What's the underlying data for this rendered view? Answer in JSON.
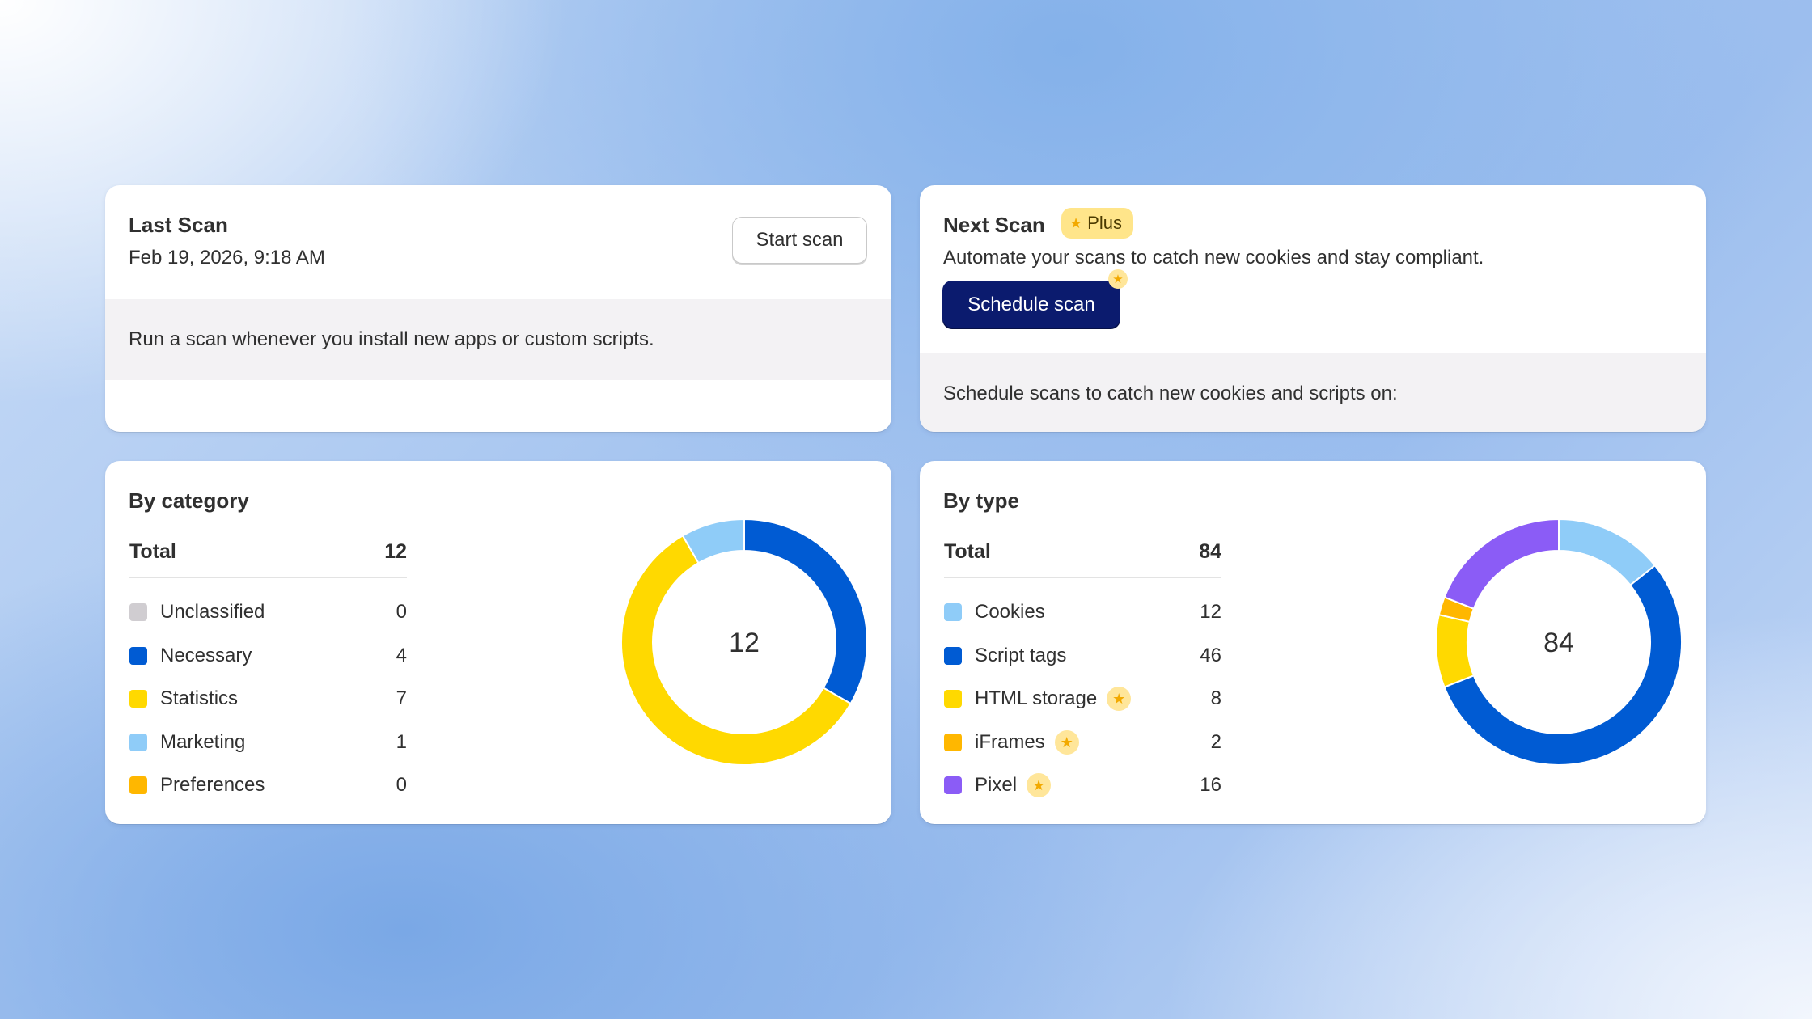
{
  "last_scan": {
    "title": "Last Scan",
    "date": "Feb 19, 2026, 9:18 AM",
    "start_button": "Start scan",
    "info": "Run a scan whenever you install new apps or custom scripts."
  },
  "next_scan": {
    "title": "Next Scan",
    "plus_badge": "Plus",
    "description": "Automate your scans to catch new cookies and stay compliant.",
    "schedule_button": "Schedule scan",
    "info": "Schedule scans to catch new cookies and scripts on:"
  },
  "by_category": {
    "title": "By category",
    "total_label": "Total",
    "total_value": "12",
    "items": [
      {
        "label": "Unclassified",
        "value": "0",
        "color": "#d0cdd1"
      },
      {
        "label": "Necessary",
        "value": "4",
        "color": "#005bd3"
      },
      {
        "label": "Statistics",
        "value": "7",
        "color": "#ffd900"
      },
      {
        "label": "Marketing",
        "value": "1",
        "color": "#8fccf8"
      },
      {
        "label": "Preferences",
        "value": "0",
        "color": "#ffb700"
      }
    ]
  },
  "by_type": {
    "title": "By type",
    "total_label": "Total",
    "total_value": "84",
    "items": [
      {
        "label": "Cookies",
        "value": "12",
        "color": "#8fccf8",
        "plus": false
      },
      {
        "label": "Script tags",
        "value": "46",
        "color": "#005bd3",
        "plus": false
      },
      {
        "label": "HTML storage",
        "value": "8",
        "color": "#ffd900",
        "plus": true
      },
      {
        "label": "iFrames",
        "value": "2",
        "color": "#ffb700",
        "plus": true
      },
      {
        "label": "Pixel",
        "value": "16",
        "color": "#8b5cf6",
        "plus": true
      }
    ]
  },
  "chart_data": [
    {
      "type": "pie",
      "donut": true,
      "center_label": "12",
      "categories": [
        "Necessary",
        "Statistics",
        "Marketing"
      ],
      "values": [
        4,
        7,
        1
      ],
      "colors": [
        "#005bd3",
        "#ffd900",
        "#8fccf8"
      ]
    },
    {
      "type": "pie",
      "donut": true,
      "center_label": "84",
      "categories": [
        "Cookies",
        "Script tags",
        "HTML storage",
        "iFrames",
        "Pixel"
      ],
      "values": [
        12,
        46,
        8,
        2,
        16
      ],
      "colors": [
        "#8fccf8",
        "#005bd3",
        "#ffd900",
        "#ffb700",
        "#8b5cf6"
      ]
    }
  ]
}
